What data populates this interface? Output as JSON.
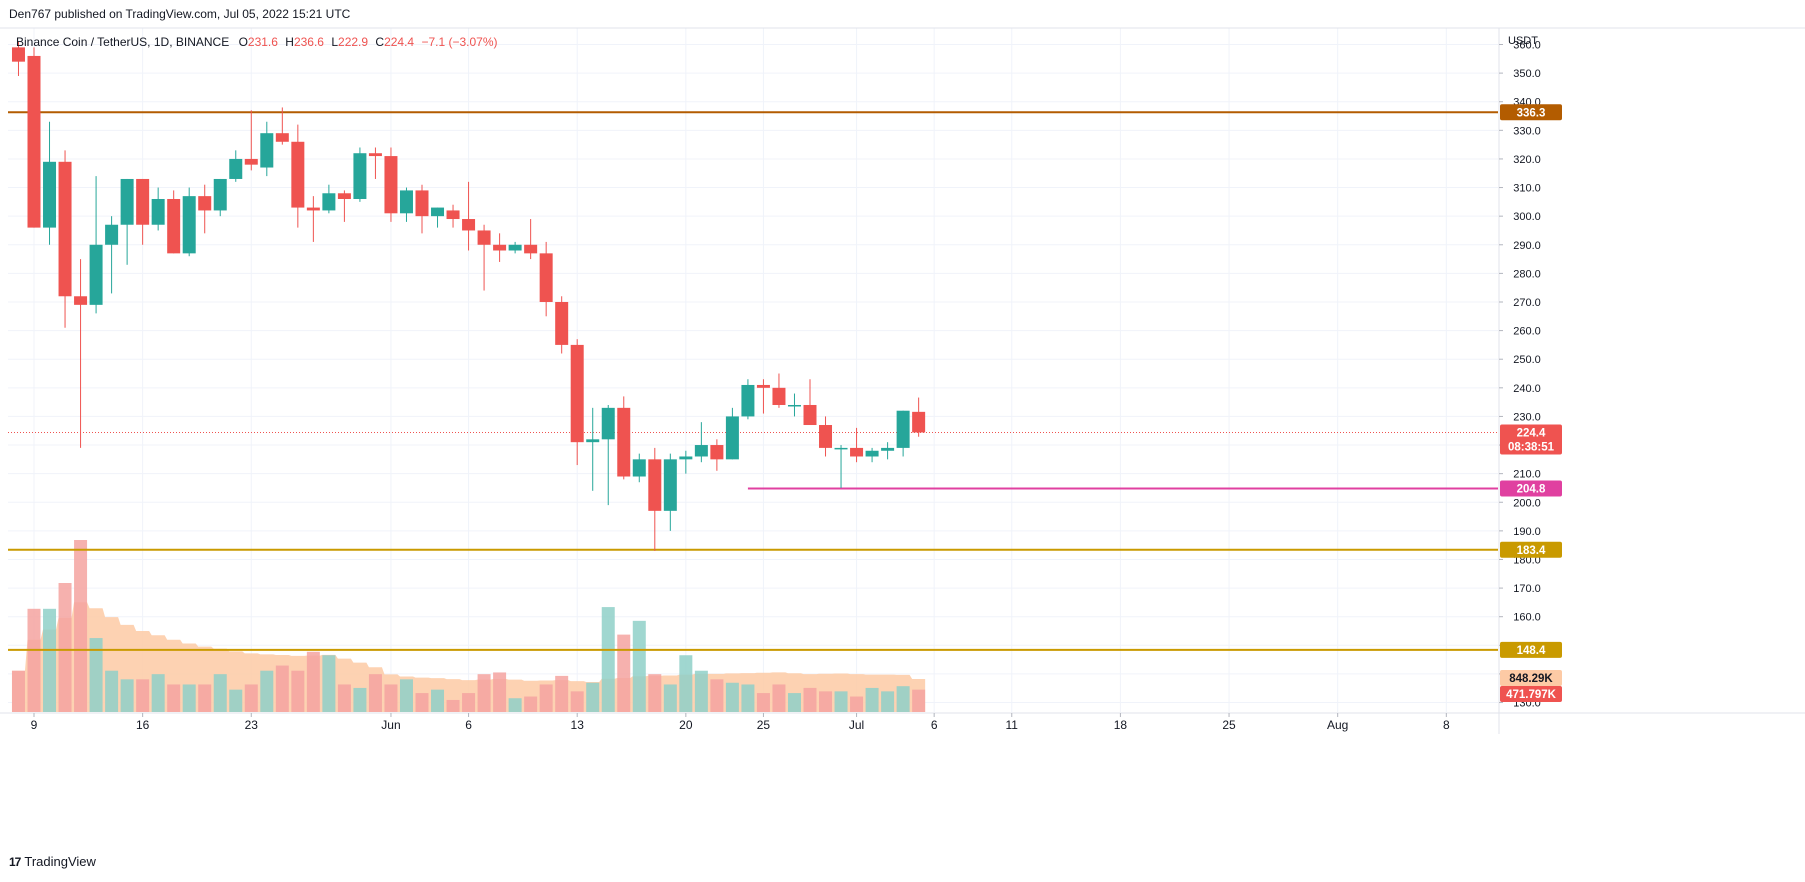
{
  "header": {
    "published": "Den767 published on TradingView.com, Jul 05, 2022 15:21 UTC",
    "symbol": "Binance Coin / TetherUS, 1D, BINANCE",
    "o_label": "O",
    "o_value": "231.6",
    "h_label": "H",
    "h_value": "236.6",
    "l_label": "L",
    "l_value": "222.9",
    "c_label": "C",
    "c_value": "224.4",
    "change": "−7.1 (−3.07%)"
  },
  "footer": {
    "logo": "17",
    "brand": "TradingView"
  },
  "colors": {
    "up": "#26a69a",
    "down": "#ef5350",
    "vol_up": "#8fd0c8",
    "vol_down": "#f4a3a0",
    "line_top": "#b35c00",
    "line_support": "#c99a00",
    "line_pink": "#e040a0",
    "ma_fill": "#fdcaa5"
  },
  "chart_data": {
    "type": "candlestick",
    "currency": "USDT",
    "ylim": [
      125,
      361
    ],
    "y_ticks": [
      130,
      140,
      150,
      160,
      170,
      180,
      190,
      200,
      210,
      220,
      230,
      240,
      250,
      260,
      270,
      280,
      290,
      300,
      310,
      320,
      330,
      340,
      350,
      360
    ],
    "y_tick_labels": [
      "130.0",
      "140.0",
      "150.0",
      "160.0",
      "170.0",
      "180.0",
      "190.0",
      "200.0",
      "210.0",
      "220.0",
      "230.0",
      "240.0",
      "250.0",
      "260.0",
      "270.0",
      "280.0",
      "290.0",
      "300.0",
      "310.0",
      "320.0",
      "330.0",
      "340.0",
      "350.0",
      "360.0"
    ],
    "x_labels": [
      {
        "label": "9",
        "date": "2022-05-09"
      },
      {
        "label": "16",
        "date": "2022-05-16"
      },
      {
        "label": "23",
        "date": "2022-05-23"
      },
      {
        "label": "Jun",
        "date": "2022-06-01"
      },
      {
        "label": "6",
        "date": "2022-06-06"
      },
      {
        "label": "13",
        "date": "2022-06-13"
      },
      {
        "label": "20",
        "date": "2022-06-20"
      },
      {
        "label": "25",
        "date": "2022-06-25"
      },
      {
        "label": "Jul",
        "date": "2022-07-01"
      },
      {
        "label": "6",
        "date": "2022-07-06"
      },
      {
        "label": "11",
        "date": "2022-07-11"
      },
      {
        "label": "18",
        "date": "2022-07-18"
      },
      {
        "label": "25",
        "date": "2022-07-25"
      },
      {
        "label": "Aug",
        "date": "2022-08-01"
      },
      {
        "label": "8",
        "date": "2022-08-08"
      }
    ],
    "candles": [
      {
        "date": "2022-05-08",
        "o": 359,
        "h": 361,
        "l": 349,
        "c": 354
      },
      {
        "date": "2022-05-09",
        "o": 356,
        "h": 359,
        "l": 296,
        "c": 296
      },
      {
        "date": "2022-05-10",
        "o": 296,
        "h": 333,
        "l": 290,
        "c": 319
      },
      {
        "date": "2022-05-11",
        "o": 319,
        "h": 323,
        "l": 261,
        "c": 272
      },
      {
        "date": "2022-05-12",
        "o": 272,
        "h": 285,
        "l": 219,
        "c": 269
      },
      {
        "date": "2022-05-13",
        "o": 269,
        "h": 314,
        "l": 266,
        "c": 290
      },
      {
        "date": "2022-05-14",
        "o": 290,
        "h": 300,
        "l": 273,
        "c": 297
      },
      {
        "date": "2022-05-15",
        "o": 297,
        "h": 313,
        "l": 283,
        "c": 313
      },
      {
        "date": "2022-05-16",
        "o": 313,
        "h": 313,
        "l": 290,
        "c": 297
      },
      {
        "date": "2022-05-17",
        "o": 297,
        "h": 310,
        "l": 295,
        "c": 306
      },
      {
        "date": "2022-05-18",
        "o": 306,
        "h": 309,
        "l": 287,
        "c": 287
      },
      {
        "date": "2022-05-19",
        "o": 287,
        "h": 310,
        "l": 286,
        "c": 307
      },
      {
        "date": "2022-05-20",
        "o": 307,
        "h": 311,
        "l": 294,
        "c": 302
      },
      {
        "date": "2022-05-21",
        "o": 302,
        "h": 313,
        "l": 300,
        "c": 313
      },
      {
        "date": "2022-05-22",
        "o": 313,
        "h": 323,
        "l": 312,
        "c": 320
      },
      {
        "date": "2022-05-23",
        "o": 320,
        "h": 337,
        "l": 316,
        "c": 318
      },
      {
        "date": "2022-05-24",
        "o": 317,
        "h": 333,
        "l": 314,
        "c": 329
      },
      {
        "date": "2022-05-25",
        "o": 329,
        "h": 338,
        "l": 325,
        "c": 326
      },
      {
        "date": "2022-05-26",
        "o": 326,
        "h": 332,
        "l": 296,
        "c": 303
      },
      {
        "date": "2022-05-27",
        "o": 303,
        "h": 307,
        "l": 291,
        "c": 302
      },
      {
        "date": "2022-05-28",
        "o": 302,
        "h": 311,
        "l": 301,
        "c": 308
      },
      {
        "date": "2022-05-29",
        "o": 308,
        "h": 309,
        "l": 298,
        "c": 306
      },
      {
        "date": "2022-05-30",
        "o": 306,
        "h": 324,
        "l": 305,
        "c": 322
      },
      {
        "date": "2022-05-31",
        "o": 322,
        "h": 324,
        "l": 313,
        "c": 321
      },
      {
        "date": "2022-06-01",
        "o": 321,
        "h": 324,
        "l": 298,
        "c": 301
      },
      {
        "date": "2022-06-02",
        "o": 301,
        "h": 310,
        "l": 298,
        "c": 309
      },
      {
        "date": "2022-06-03",
        "o": 309,
        "h": 311,
        "l": 294,
        "c": 300
      },
      {
        "date": "2022-06-04",
        "o": 300,
        "h": 303,
        "l": 296,
        "c": 303
      },
      {
        "date": "2022-06-05",
        "o": 302,
        "h": 304,
        "l": 296,
        "c": 299
      },
      {
        "date": "2022-06-06",
        "o": 299,
        "h": 312,
        "l": 288,
        "c": 295
      },
      {
        "date": "2022-06-07",
        "o": 295,
        "h": 297,
        "l": 274,
        "c": 290
      },
      {
        "date": "2022-06-08",
        "o": 290,
        "h": 294,
        "l": 284,
        "c": 288
      },
      {
        "date": "2022-06-09",
        "o": 288,
        "h": 291,
        "l": 287,
        "c": 290
      },
      {
        "date": "2022-06-10",
        "o": 290,
        "h": 299,
        "l": 285,
        "c": 287
      },
      {
        "date": "2022-06-11",
        "o": 287,
        "h": 291,
        "l": 265,
        "c": 270
      },
      {
        "date": "2022-06-12",
        "o": 270,
        "h": 272,
        "l": 252,
        "c": 255
      },
      {
        "date": "2022-06-13",
        "o": 255,
        "h": 257,
        "l": 213,
        "c": 221
      },
      {
        "date": "2022-06-14",
        "o": 221,
        "h": 233,
        "l": 204,
        "c": 222
      },
      {
        "date": "2022-06-15",
        "o": 222,
        "h": 234,
        "l": 199,
        "c": 233
      },
      {
        "date": "2022-06-16",
        "o": 233,
        "h": 237,
        "l": 208,
        "c": 209
      },
      {
        "date": "2022-06-17",
        "o": 209,
        "h": 217,
        "l": 207,
        "c": 215
      },
      {
        "date": "2022-06-18",
        "o": 215,
        "h": 219,
        "l": 183,
        "c": 197
      },
      {
        "date": "2022-06-19",
        "o": 197,
        "h": 217,
        "l": 190,
        "c": 215
      },
      {
        "date": "2022-06-20",
        "o": 215,
        "h": 218,
        "l": 210,
        "c": 216
      },
      {
        "date": "2022-06-21",
        "o": 216,
        "h": 228,
        "l": 214,
        "c": 220
      },
      {
        "date": "2022-06-22",
        "o": 220,
        "h": 222,
        "l": 211,
        "c": 215
      },
      {
        "date": "2022-06-23",
        "o": 215,
        "h": 233,
        "l": 215,
        "c": 230
      },
      {
        "date": "2022-06-24",
        "o": 230,
        "h": 243,
        "l": 229,
        "c": 241
      },
      {
        "date": "2022-06-25",
        "o": 241,
        "h": 243,
        "l": 231,
        "c": 240
      },
      {
        "date": "2022-06-26",
        "o": 240,
        "h": 245,
        "l": 233,
        "c": 234
      },
      {
        "date": "2022-06-27",
        "o": 234,
        "h": 238,
        "l": 230,
        "c": 234
      },
      {
        "date": "2022-06-28",
        "o": 234,
        "h": 243,
        "l": 227,
        "c": 227
      },
      {
        "date": "2022-06-29",
        "o": 227,
        "h": 230,
        "l": 216,
        "c": 219
      },
      {
        "date": "2022-06-30",
        "o": 219,
        "h": 220,
        "l": 205,
        "c": 219
      },
      {
        "date": "2022-07-01",
        "o": 219,
        "h": 226,
        "l": 214,
        "c": 216
      },
      {
        "date": "2022-07-02",
        "o": 216,
        "h": 219,
        "l": 214,
        "c": 218
      },
      {
        "date": "2022-07-03",
        "o": 218,
        "h": 221,
        "l": 215,
        "c": 219
      },
      {
        "date": "2022-07-04",
        "o": 219,
        "h": 232,
        "l": 216,
        "c": 232
      },
      {
        "date": "2022-07-05",
        "o": 231.6,
        "h": 236.6,
        "l": 222.9,
        "c": 224.4
      }
    ],
    "volume": [
      0.24,
      0.6,
      0.6,
      0.75,
      1.0,
      0.43,
      0.24,
      0.19,
      0.19,
      0.22,
      0.16,
      0.16,
      0.16,
      0.22,
      0.13,
      0.16,
      0.24,
      0.27,
      0.24,
      0.35,
      0.33,
      0.16,
      0.14,
      0.22,
      0.16,
      0.19,
      0.11,
      0.13,
      0.07,
      0.11,
      0.22,
      0.23,
      0.08,
      0.09,
      0.16,
      0.21,
      0.12,
      0.17,
      0.61,
      0.45,
      0.53,
      0.22,
      0.16,
      0.33,
      0.24,
      0.19,
      0.17,
      0.16,
      0.11,
      0.16,
      0.11,
      0.14,
      0.12,
      0.12,
      0.09,
      0.14,
      0.12,
      0.15,
      0.13
    ],
    "horizontal_lines": [
      {
        "price": 336.3,
        "label": "336.3",
        "color": "#b35c00",
        "from_date": "2022-05-07"
      },
      {
        "price": 204.8,
        "label": "204.8",
        "color": "#e040a0",
        "from_date": "2022-06-24"
      },
      {
        "price": 183.4,
        "label": "183.4",
        "color": "#c99a00",
        "from_date": "2022-05-07"
      },
      {
        "price": 148.4,
        "label": "148.4",
        "color": "#c99a00",
        "from_date": "2022-05-07"
      }
    ],
    "last_price": {
      "price": 224.4,
      "label": "224.4",
      "countdown": "08:38:51"
    },
    "volume_labels": [
      {
        "label": "848.29K",
        "color": "#fdcaa5",
        "text_color": "#131722",
        "kind": "ma"
      },
      {
        "label": "471.797K",
        "color": "#ef5350",
        "text_color": "#ffffff",
        "kind": "last"
      }
    ]
  }
}
